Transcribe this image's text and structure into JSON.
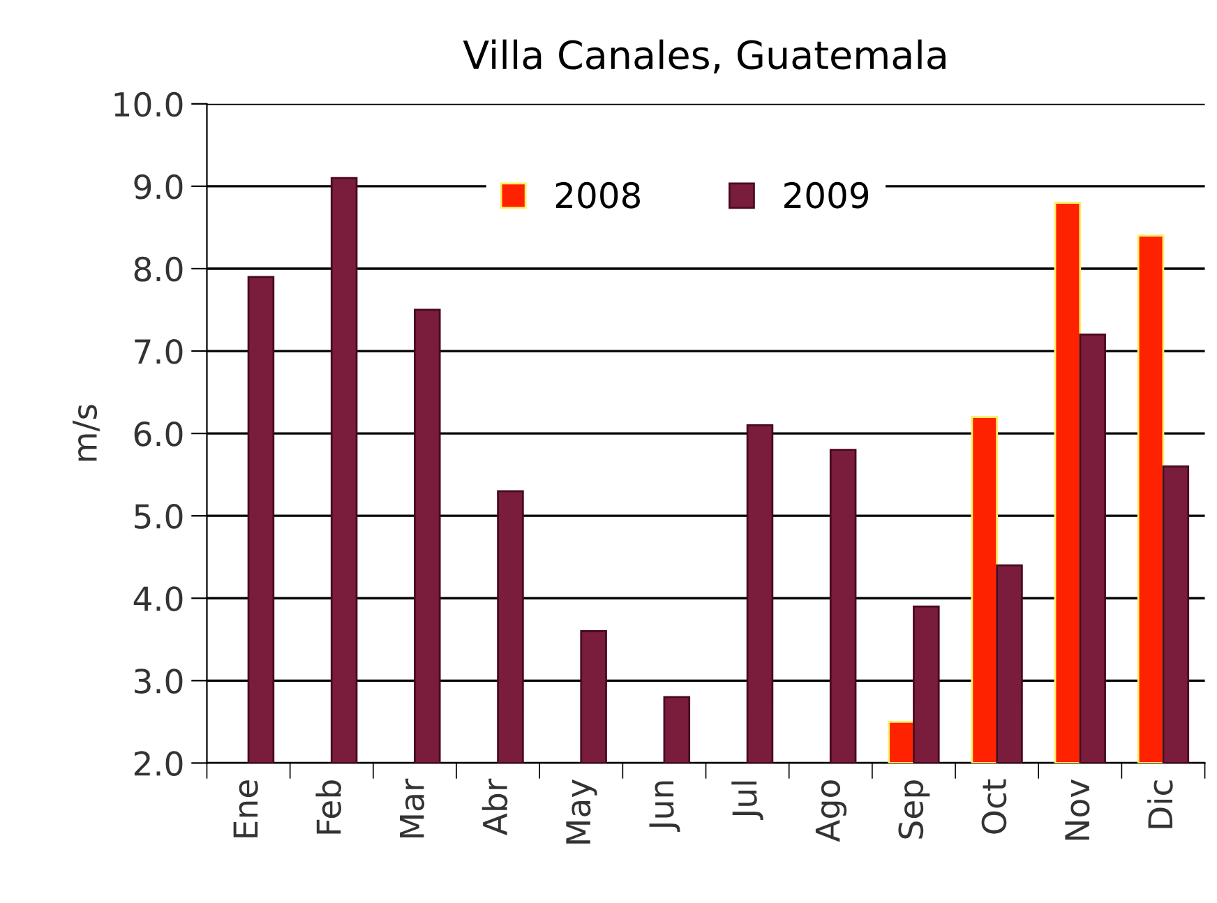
{
  "chart_data": {
    "type": "bar",
    "title": "Villa Canales, Guatemala",
    "ylabel": "m/s",
    "categories": [
      "Ene",
      "Feb",
      "Mar",
      "Abr",
      "May",
      "Jun",
      "Jul",
      "Ago",
      "Sep",
      "Oct",
      "Nov",
      "Dic"
    ],
    "series": [
      {
        "name": "2008",
        "color": "#ff2200",
        "values": [
          null,
          null,
          null,
          null,
          null,
          null,
          null,
          null,
          2.5,
          6.2,
          8.8,
          8.4
        ]
      },
      {
        "name": "2009",
        "color": "#7a1c3c",
        "values": [
          7.9,
          9.1,
          7.5,
          5.3,
          3.6,
          2.8,
          6.1,
          5.8,
          3.9,
          4.4,
          7.2,
          5.6
        ]
      }
    ],
    "ylim": [
      2,
      10
    ],
    "yticks": [
      {
        "value": 2,
        "label": "2.0"
      },
      {
        "value": 3,
        "label": "3.0"
      },
      {
        "value": 4,
        "label": "4.0"
      },
      {
        "value": 5,
        "label": "5.0"
      },
      {
        "value": 6,
        "label": "6.0"
      },
      {
        "value": 7,
        "label": "7.0"
      },
      {
        "value": 8,
        "label": "8.0"
      },
      {
        "value": 9,
        "label": "9.0"
      },
      {
        "value": 10,
        "label": "10.0"
      }
    ],
    "grid": "y",
    "legend": "top"
  }
}
